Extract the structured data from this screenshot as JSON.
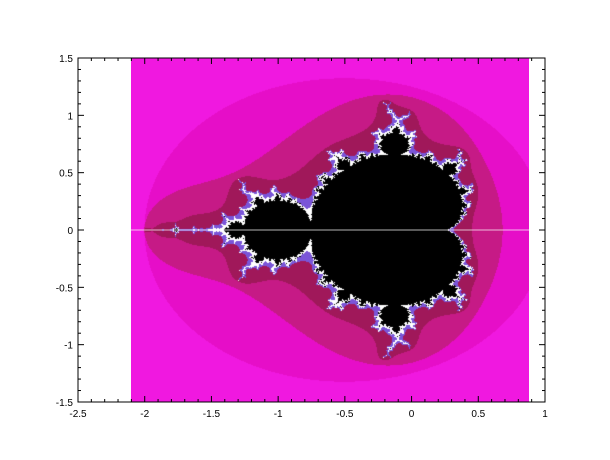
{
  "chart_data": {
    "type": "heatmap",
    "title": "",
    "xlabel": "",
    "ylabel": "",
    "xlim": [
      -2.5,
      1
    ],
    "ylim": [
      -1.5,
      1.5
    ],
    "x_ticks": [
      -2.5,
      -2,
      -1.5,
      -1,
      -0.5,
      0,
      0.5,
      1
    ],
    "x_tick_labels": [
      "-2.5",
      "-2",
      "-1.5",
      "-1",
      "-0.5",
      "0",
      "0.5",
      "1"
    ],
    "y_ticks": [
      -1.5,
      -1,
      -0.5,
      0,
      0.5,
      1,
      1.5
    ],
    "y_tick_labels": [
      "-1.5",
      "-1",
      "-0.5",
      "0",
      "0.5",
      "1",
      "1.5"
    ],
    "grid": false,
    "image_extent": {
      "x": [
        -2.1,
        0.88
      ],
      "y": [
        -1.5,
        1.5
      ]
    },
    "set": "mandelbrot",
    "max_iterations": 40,
    "colors": {
      "inside": "#000000",
      "boundary": "#ffffff",
      "purple": "#7a55d8",
      "dark": "#a0185a",
      "mid": "#c61a86",
      "light": "#e60ec8",
      "outer": "#f018e0",
      "escape_line": "#ffffff"
    }
  }
}
